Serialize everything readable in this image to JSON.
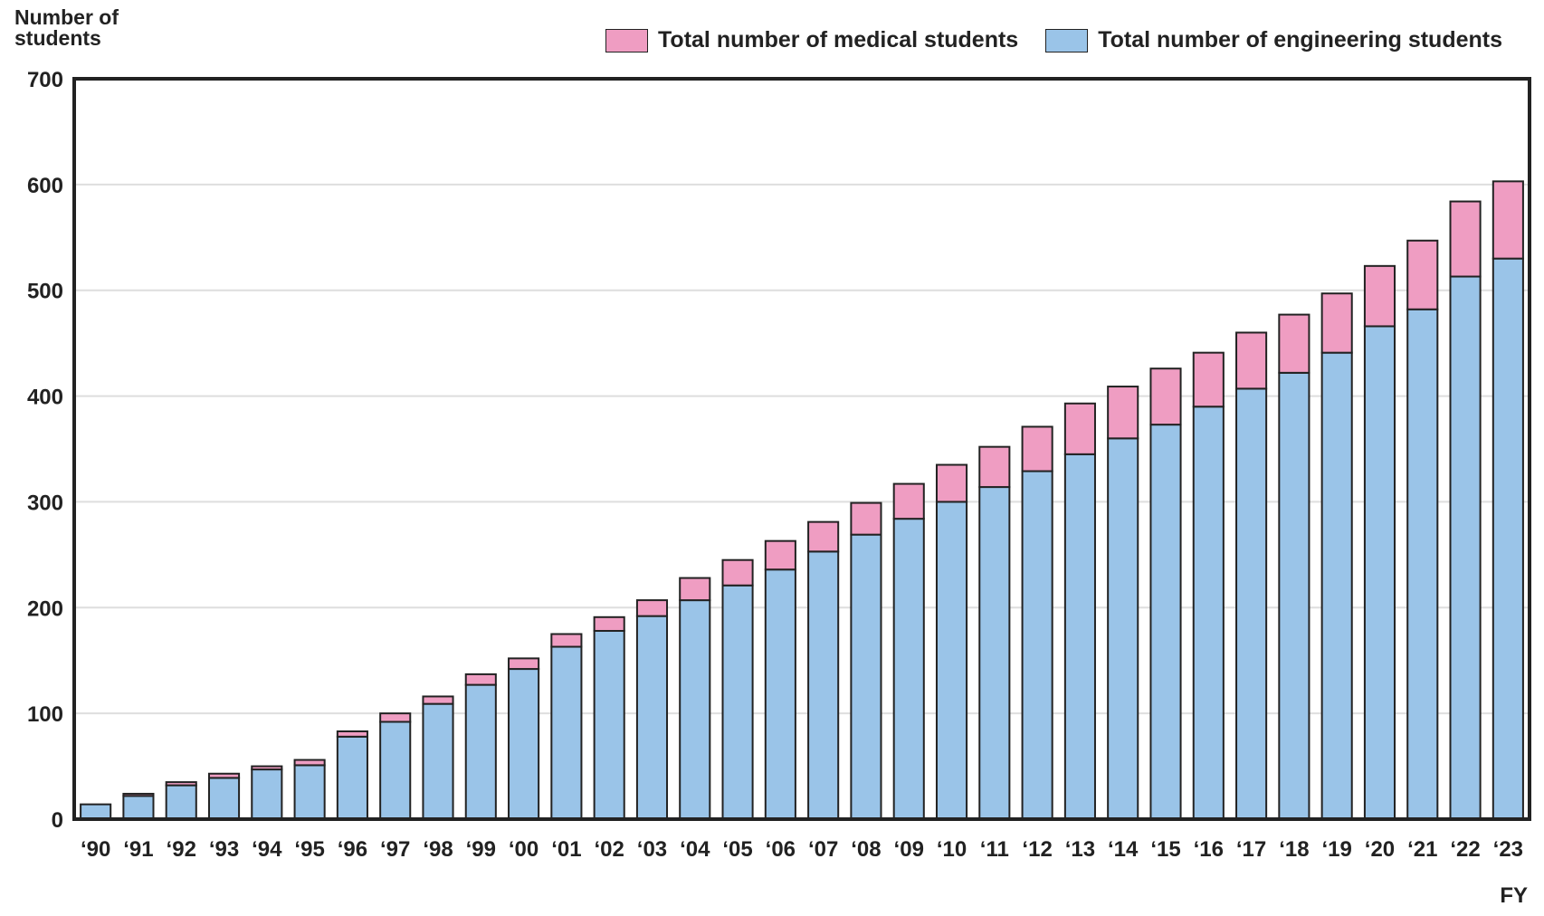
{
  "chart_data": {
    "type": "bar",
    "stacked": true,
    "ylabel": "Number of students",
    "xlabel": "FY",
    "ylim": [
      0,
      700
    ],
    "yticks": [
      0,
      100,
      200,
      300,
      400,
      500,
      600,
      700
    ],
    "grid": true,
    "legend_position": "top-right",
    "categories": [
      "‘90",
      "‘91",
      "‘92",
      "‘93",
      "‘94",
      "‘95",
      "‘96",
      "‘97",
      "‘98",
      "‘99",
      "‘00",
      "‘01",
      "‘02",
      "‘03",
      "‘04",
      "‘05",
      "‘06",
      "‘07",
      "‘08",
      "‘09",
      "‘10",
      "‘11",
      "‘12",
      "‘13",
      "‘14",
      "‘15",
      "‘16",
      "‘17",
      "‘18",
      "‘19",
      "‘20",
      "‘21",
      "‘22",
      "‘23"
    ],
    "series": [
      {
        "name": "Total number of engineering students",
        "color": "#9ac4e8",
        "values": [
          14,
          22,
          32,
          39,
          47,
          51,
          78,
          92,
          109,
          127,
          142,
          163,
          178,
          192,
          207,
          221,
          236,
          253,
          269,
          284,
          300,
          314,
          329,
          345,
          360,
          373,
          390,
          407,
          422,
          441,
          466,
          482,
          513,
          530
        ]
      },
      {
        "name": "Total number of medical students",
        "color": "#ef9dc2",
        "values": [
          0,
          2,
          3,
          4,
          3,
          5,
          5,
          8,
          7,
          10,
          10,
          12,
          13,
          15,
          21,
          24,
          27,
          28,
          30,
          33,
          35,
          38,
          42,
          48,
          49,
          53,
          51,
          53,
          55,
          56,
          57,
          65,
          71,
          73
        ]
      }
    ]
  },
  "legend": {
    "medical_label": "Total number of medical students",
    "engineering_label": "Total number of engineering students"
  },
  "axis": {
    "ylabel_line1": "Number of",
    "ylabel_line2": "students",
    "xlabel": "FY"
  }
}
